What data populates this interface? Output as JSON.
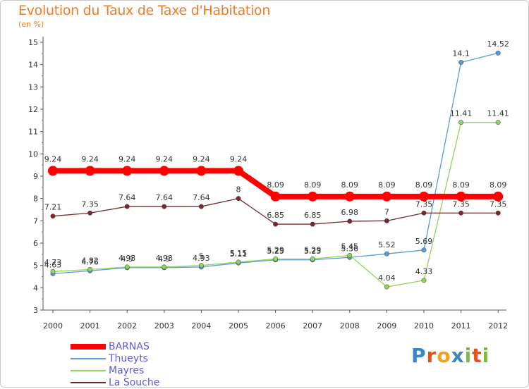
{
  "header": {
    "title": "Evolution du Taux de Taxe d'Habitation",
    "subtitle": "(en %)"
  },
  "brand": {
    "text": "Proxiti",
    "letter_colors": [
      "#3a87c8",
      "#e94e1b",
      "#f0a31a",
      "#3a87c8",
      "#7cbd3b",
      "#e94e1b",
      "#7cbd3b"
    ]
  },
  "chart_data": {
    "type": "line",
    "title": "Evolution du Taux de Taxe d'Habitation",
    "subtitle": "(en %)",
    "xlabel": "",
    "ylabel": "",
    "categories": [
      "2000",
      "2001",
      "2002",
      "2003",
      "2004",
      "2005",
      "2006",
      "2007",
      "2008",
      "2009",
      "2010",
      "2011",
      "2012"
    ],
    "y_ticks": [
      3,
      4,
      5,
      6,
      7,
      8,
      9,
      10,
      11,
      12,
      13,
      14,
      15
    ],
    "ylim": [
      3,
      15
    ],
    "grid": false,
    "legend_position": "bottom-left",
    "series": [
      {
        "name": "BARNAS",
        "color": "#ff0000",
        "thick": true,
        "values": [
          9.24,
          9.24,
          9.24,
          9.24,
          9.24,
          9.24,
          8.09,
          8.09,
          8.09,
          8.09,
          8.09,
          8.09,
          8.09
        ],
        "labels": [
          "9.24",
          "9.24",
          "9.24",
          "9.24",
          "9.24",
          "9.24",
          "8.09",
          "8.09",
          "8.09",
          "8.09",
          "8.09",
          "8.09",
          "8.09"
        ]
      },
      {
        "name": "Thueyts",
        "color": "#5b9bd5",
        "thick": false,
        "values": [
          4.63,
          4.76,
          4.9,
          4.9,
          4.93,
          5.11,
          5.25,
          5.25,
          5.36,
          5.52,
          5.69,
          14.1,
          14.52
        ],
        "labels": [
          "4.63",
          "4.76",
          "4.9",
          "4.9",
          "4.93",
          "5.11",
          "5.25",
          "5.25",
          "5.36",
          "5.52",
          "5.69",
          "14.1",
          "14.52"
        ]
      },
      {
        "name": "Mayres",
        "color": "#8ed65a",
        "thick": false,
        "values": [
          4.73,
          4.82,
          4.93,
          4.93,
          5.0,
          5.15,
          5.29,
          5.29,
          5.45,
          4.04,
          4.33,
          11.41,
          11.41
        ],
        "labels": [
          "4.73",
          "4.82",
          "4.93",
          "4.93",
          "5",
          "5.15",
          "5.29",
          "5.29",
          "5.45",
          "4.04",
          "4.33",
          "11.41",
          "11.41"
        ]
      },
      {
        "name": "La Souche",
        "color": "#7b2a2a",
        "thick": false,
        "values": [
          7.21,
          7.35,
          7.64,
          7.64,
          7.64,
          8.0,
          6.85,
          6.85,
          6.98,
          7.0,
          7.35,
          7.35,
          7.35
        ],
        "labels": [
          "7.21",
          "7.35",
          "7.64",
          "7.64",
          "7.64",
          "8",
          "6.85",
          "6.85",
          "6.98",
          "7",
          "7.35",
          "7.35",
          "7.35"
        ]
      }
    ]
  }
}
